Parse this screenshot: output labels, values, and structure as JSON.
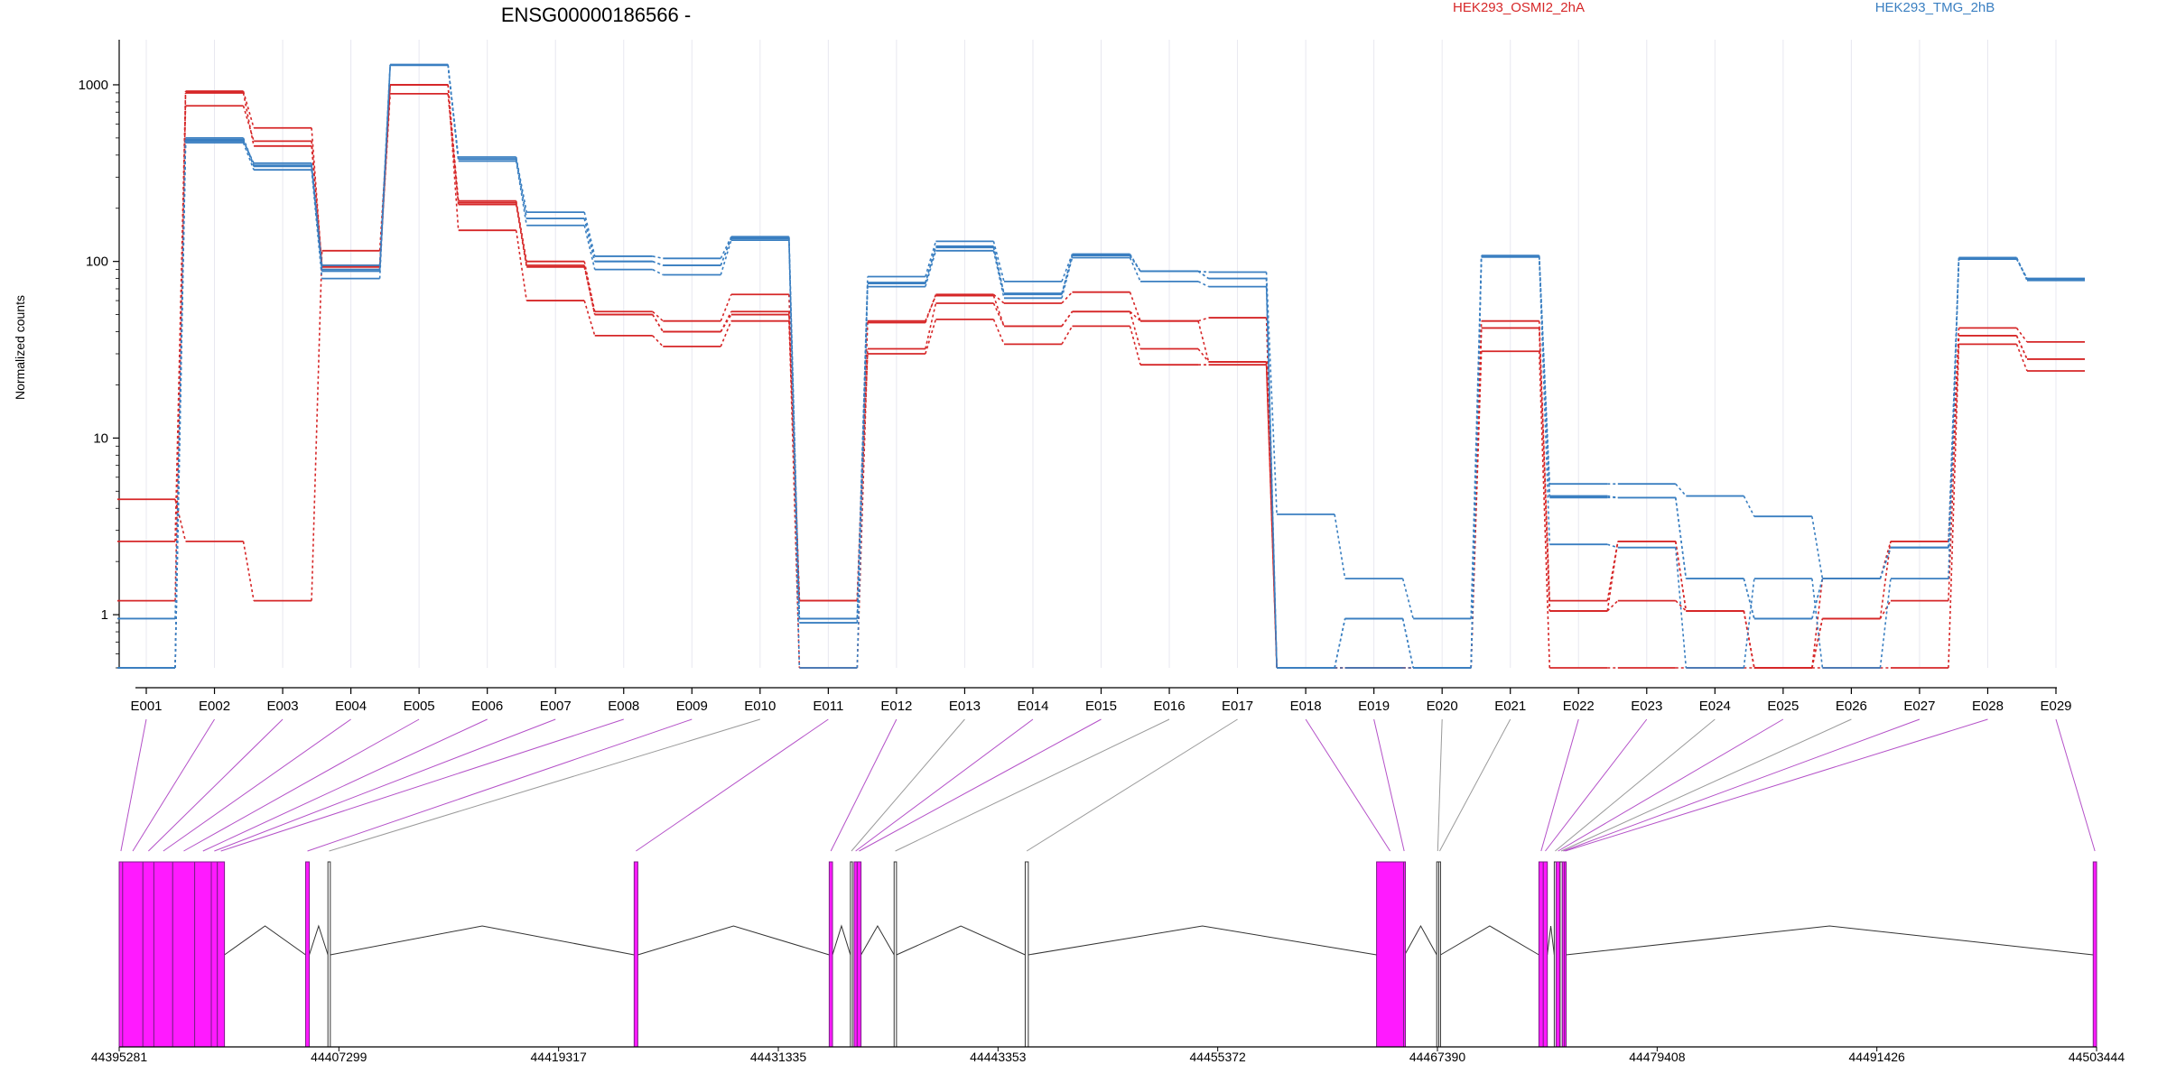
{
  "title": "ENSG00000186566 -",
  "legend": [
    {
      "label": "HEK293_OSMI2_2hA",
      "color": "#d62728"
    },
    {
      "label": "HEK293_TMG_2hB",
      "color": "#3a7fc1"
    }
  ],
  "colors": {
    "condition_a": "#d62728",
    "condition_b": "#3a7fc1",
    "exon_fill": "#ff1aff",
    "exon_edge": "#7a1f87",
    "connector_sig": "#b451c8",
    "connector_nonsig": "#9a9a9a"
  },
  "chart_data": {
    "type": "line",
    "ylabel": "Normalized counts",
    "yscale": "log",
    "ylim": [
      0.5,
      1800
    ],
    "yticks": [
      1,
      10,
      100,
      1000
    ],
    "ytick_labels": [
      "1",
      "10",
      "100",
      "1000"
    ],
    "categories": [
      "E001",
      "E002",
      "E003",
      "E004",
      "E005",
      "E006",
      "E007",
      "E008",
      "E009",
      "E010",
      "E011",
      "E012",
      "E013",
      "E014",
      "E015",
      "E016",
      "E017",
      "E018",
      "E019",
      "E020",
      "E021",
      "E022",
      "E023",
      "E024",
      "E025",
      "E026",
      "E027",
      "E028",
      "E029"
    ],
    "series": [
      {
        "group": "HEK293_OSMI2_2hA",
        "values": [
          4.5,
          2.6,
          1.2,
          115,
          1000,
          220,
          100,
          52,
          46,
          65,
          1.2,
          45,
          65,
          58,
          67,
          46,
          48,
          0.5,
          0.5,
          0.5,
          46,
          1.2,
          2.6,
          1.05,
          0.5,
          1.6,
          2.6,
          42,
          35
        ]
      },
      {
        "group": "HEK293_OSMI2_2hA",
        "values": [
          2.6,
          920,
          570,
          93,
          890,
          210,
          93,
          50,
          40,
          50,
          0.5,
          32,
          58,
          43,
          52,
          32,
          27,
          0.5,
          0.5,
          0.5,
          42,
          1.05,
          1.2,
          1.05,
          0.5,
          0.95,
          1.2,
          38,
          28
        ]
      },
      {
        "group": "HEK293_OSMI2_2hA",
        "values": [
          1.2,
          760,
          480,
          90,
          1000,
          150,
          60,
          38,
          33,
          46,
          1.2,
          30,
          47,
          34,
          43,
          26,
          26,
          0.5,
          0.5,
          0.5,
          31,
          0.5,
          0.5,
          0.5,
          0.5,
          0.5,
          0.5,
          34,
          24
        ]
      },
      {
        "group": "HEK293_OSMI2_2hA",
        "values": [
          0.5,
          900,
          450,
          95,
          1000,
          215,
          95,
          50,
          40,
          52,
          1.2,
          46,
          64,
          43,
          52,
          46,
          27,
          0.5,
          0.5,
          0.5,
          42,
          1.05,
          2.6,
          1.05,
          0.5,
          0.95,
          2.6,
          38,
          28
        ]
      },
      {
        "group": "HEK293_TMG_2hB",
        "values": [
          0.95,
          500,
          350,
          95,
          1300,
          390,
          190,
          107,
          104,
          138,
          0.95,
          82,
          130,
          77,
          110,
          88,
          87,
          3.7,
          1.6,
          0.95,
          108,
          5.5,
          5.5,
          4.7,
          3.6,
          1.6,
          2.4,
          103,
          80
        ]
      },
      {
        "group": "HEK293_TMG_2hB",
        "values": [
          0.5,
          480,
          360,
          90,
          1290,
          380,
          175,
          100,
          95,
          135,
          0.95,
          75,
          120,
          65,
          108,
          88,
          80,
          0.5,
          0.95,
          0.5,
          106,
          4.7,
          4.6,
          1.6,
          0.95,
          1.6,
          2.4,
          105,
          79
        ]
      },
      {
        "group": "HEK293_TMG_2hB",
        "values": [
          0.5,
          470,
          330,
          80,
          1300,
          370,
          160,
          90,
          84,
          132,
          0.5,
          72,
          115,
          62,
          105,
          77,
          72,
          0.5,
          0.5,
          0.5,
          106,
          2.5,
          2.4,
          0.5,
          1.6,
          0.5,
          1.6,
          105,
          78
        ]
      },
      {
        "group": "HEK293_TMG_2hB",
        "values": [
          0.5,
          490,
          345,
          88,
          1295,
          380,
          175,
          100,
          95,
          136,
          0.9,
          76,
          122,
          66,
          108,
          88,
          80,
          0.5,
          0.95,
          0.5,
          107,
          4.6,
          4.6,
          1.6,
          0.95,
          1.6,
          2.4,
          104,
          80
        ]
      }
    ],
    "gene_model": {
      "start": 44395281,
      "end": 44503444,
      "tick_positions": [
        44395281,
        44407299,
        44419317,
        44431335,
        44443353,
        44455372,
        44467390,
        44479408,
        44491426,
        44503444
      ],
      "tick_labels": [
        "44395281",
        "44407299",
        "44419317",
        "44431335",
        "44443353",
        "44455372",
        "44467390",
        "44479408",
        "44491426",
        "44503444"
      ],
      "exons": [
        {
          "id": "E001",
          "start": 44395281,
          "end": 44395470,
          "significant": true
        },
        {
          "id": "E002",
          "start": 44395470,
          "end": 44396580,
          "significant": true
        },
        {
          "id": "E003",
          "start": 44396580,
          "end": 44397180,
          "significant": true
        },
        {
          "id": "E004",
          "start": 44397180,
          "end": 44398210,
          "significant": true
        },
        {
          "id": "E005",
          "start": 44398210,
          "end": 44399410,
          "significant": true
        },
        {
          "id": "E006",
          "start": 44399410,
          "end": 44400320,
          "significant": true
        },
        {
          "id": "E007",
          "start": 44400320,
          "end": 44400650,
          "significant": true
        },
        {
          "id": "E008",
          "start": 44400650,
          "end": 44401040,
          "significant": true
        },
        {
          "id": "E009",
          "start": 44405480,
          "end": 44405680,
          "significant": true
        },
        {
          "id": "E010",
          "start": 44406700,
          "end": 44406830,
          "significant": false
        },
        {
          "id": "E011",
          "start": 44423450,
          "end": 44423650,
          "significant": true
        },
        {
          "id": "E012",
          "start": 44434120,
          "end": 44434300,
          "significant": true
        },
        {
          "id": "E013",
          "start": 44435280,
          "end": 44435390,
          "significant": false
        },
        {
          "id": "E014",
          "start": 44435480,
          "end": 44435650,
          "significant": true
        },
        {
          "id": "E015",
          "start": 44435650,
          "end": 44435860,
          "significant": true
        },
        {
          "id": "E016",
          "start": 44437670,
          "end": 44437800,
          "significant": false
        },
        {
          "id": "E017",
          "start": 44444840,
          "end": 44445010,
          "significant": false
        },
        {
          "id": "E018",
          "start": 44464060,
          "end": 44465540,
          "significant": true
        },
        {
          "id": "E019",
          "start": 44465540,
          "end": 44465600,
          "significant": true
        },
        {
          "id": "E020",
          "start": 44467350,
          "end": 44467460,
          "significant": false
        },
        {
          "id": "E021",
          "start": 44467460,
          "end": 44467560,
          "significant": false
        },
        {
          "id": "E022",
          "start": 44472940,
          "end": 44473180,
          "significant": true
        },
        {
          "id": "E023",
          "start": 44473180,
          "end": 44473400,
          "significant": true
        },
        {
          "id": "E024",
          "start": 44473780,
          "end": 44473880,
          "significant": false
        },
        {
          "id": "E025",
          "start": 44473880,
          "end": 44474100,
          "significant": true
        },
        {
          "id": "E026",
          "start": 44474100,
          "end": 44474220,
          "significant": false
        },
        {
          "id": "E027",
          "start": 44474220,
          "end": 44474330,
          "significant": true
        },
        {
          "id": "E028",
          "start": 44474330,
          "end": 44474420,
          "significant": true
        },
        {
          "id": "E029",
          "start": 44503260,
          "end": 44503444,
          "significant": true
        }
      ]
    }
  }
}
